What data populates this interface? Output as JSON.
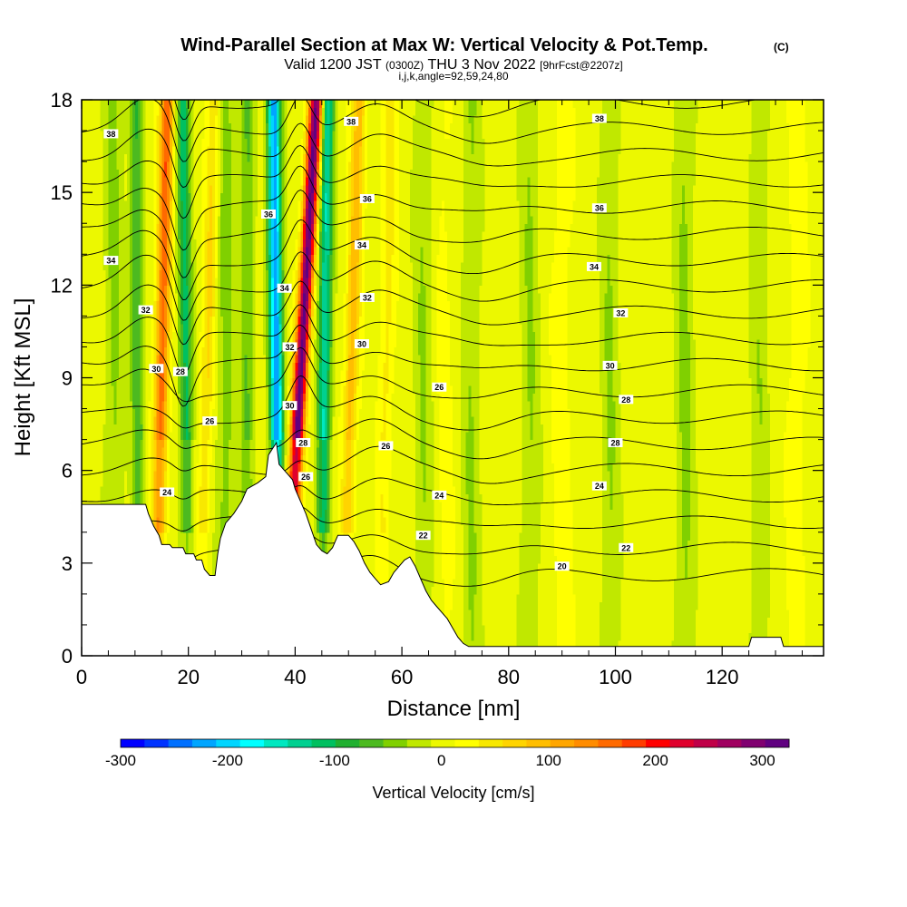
{
  "chart_data": {
    "type": "heatmap",
    "title": "Wind-Parallel Section at Max W: Vertical Velocity & Pot.Temp.",
    "title_mark": "(C)",
    "subtitle_parts": [
      "Valid 1200 JST",
      "(0300Z)",
      "THU 3 Nov 2022",
      "[9hrFcst@2207z]"
    ],
    "subtitle2": "i,j,k,angle=92,59,24,80",
    "xlabel": "Distance [nm]",
    "ylabel": "Height [Kft MSL]",
    "xlim": [
      0,
      139
    ],
    "ylim": [
      0,
      18
    ],
    "x_ticks": [
      "0",
      "20",
      "40",
      "60",
      "80",
      "100",
      "120"
    ],
    "y_ticks": [
      "0",
      "3",
      "6",
      "9",
      "12",
      "15",
      "18"
    ],
    "colorbar": {
      "title": "Vertical Velocity [cm/s]",
      "range": [
        -300,
        325
      ],
      "tick_labels": [
        "-300",
        "-200",
        "-100",
        "0",
        "100",
        "200",
        "300"
      ],
      "colors": [
        "#0000ff",
        "#0033ff",
        "#0070ff",
        "#00a5ff",
        "#00d5ff",
        "#00ffff",
        "#00e8c0",
        "#00d090",
        "#00c060",
        "#20b030",
        "#4cba20",
        "#80d000",
        "#c0e800",
        "#ecf800",
        "#ffff00",
        "#f8e800",
        "#ffd400",
        "#ffbe00",
        "#ffa600",
        "#ff8c00",
        "#ff6a00",
        "#ff3c00",
        "#ff0000",
        "#e0002c",
        "#c00048",
        "#a00060",
        "#800070",
        "#600080"
      ]
    },
    "updraft_bands": [
      {
        "x_bottom": 14,
        "x_top": 16,
        "w": 160
      },
      {
        "x_bottom": 38,
        "x_top": 44,
        "w": 310
      },
      {
        "x_bottom": 49,
        "x_top": 52,
        "w": 90
      },
      {
        "x_bottom": 22,
        "x_top": 25,
        "w": 60
      },
      {
        "x_bottom": 56,
        "x_top": 58,
        "w": 40
      }
    ],
    "downdraft_bands": [
      {
        "x_bottom": 11,
        "x_top": 10,
        "w": -80
      },
      {
        "x_bottom": 20,
        "x_top": 19,
        "w": -110
      },
      {
        "x_bottom": 37,
        "x_top": 36,
        "w": -230
      },
      {
        "x_bottom": 45,
        "x_top": 46,
        "w": -150
      },
      {
        "x_bottom": 31,
        "x_top": 31,
        "w": -60
      }
    ],
    "weak_bands": [
      {
        "x": 6,
        "w": -40
      },
      {
        "x": 27,
        "w": -45
      },
      {
        "x": 64,
        "w": -35
      },
      {
        "x": 73,
        "w": -35
      },
      {
        "x": 84,
        "w": -35
      },
      {
        "x": 99,
        "w": -35
      },
      {
        "x": 113,
        "w": -40
      },
      {
        "x": 127,
        "w": -30
      },
      {
        "x": 134,
        "w": 20
      },
      {
        "x": 68,
        "w": 15
      },
      {
        "x": 90,
        "w": 20
      }
    ],
    "terrain": [
      [
        0,
        4.9
      ],
      [
        12,
        4.9
      ],
      [
        12.5,
        4.6
      ],
      [
        13.5,
        4.2
      ],
      [
        14.5,
        3.9
      ],
      [
        15,
        3.6
      ],
      [
        16.5,
        3.6
      ],
      [
        17,
        3.5
      ],
      [
        19,
        3.5
      ],
      [
        19.5,
        3.3
      ],
      [
        21,
        3.3
      ],
      [
        21.5,
        3.1
      ],
      [
        22.5,
        3.1
      ],
      [
        23,
        2.8
      ],
      [
        24,
        2.6
      ],
      [
        25,
        2.6
      ],
      [
        25.5,
        3.3
      ],
      [
        26,
        3.8
      ],
      [
        27,
        4.3
      ],
      [
        28.5,
        4.6
      ],
      [
        30,
        5
      ],
      [
        31,
        5.4
      ],
      [
        33,
        5.6
      ],
      [
        34.5,
        5.8
      ],
      [
        35,
        6.5
      ],
      [
        36.5,
        6.9
      ],
      [
        37,
        6.2
      ],
      [
        38,
        6.0
      ],
      [
        38.5,
        5.9
      ],
      [
        39.5,
        5.7
      ],
      [
        40,
        5.4
      ],
      [
        41,
        5.0
      ],
      [
        42,
        4.6
      ],
      [
        43,
        4.1
      ],
      [
        44,
        3.6
      ],
      [
        45,
        3.4
      ],
      [
        46,
        3.3
      ],
      [
        47,
        3.5
      ],
      [
        48,
        3.9
      ],
      [
        50,
        3.9
      ],
      [
        51,
        3.7
      ],
      [
        52,
        3.4
      ],
      [
        53,
        3.0
      ],
      [
        54,
        2.7
      ],
      [
        55,
        2.5
      ],
      [
        56,
        2.3
      ],
      [
        57.5,
        2.4
      ],
      [
        58.5,
        2.7
      ],
      [
        59.5,
        2.9
      ],
      [
        60.5,
        3.1
      ],
      [
        61.5,
        3.2
      ],
      [
        62.5,
        2.9
      ],
      [
        63.5,
        2.5
      ],
      [
        64.5,
        2.1
      ],
      [
        65.5,
        1.8
      ],
      [
        66.5,
        1.6
      ],
      [
        67.5,
        1.4
      ],
      [
        68.5,
        1.2
      ],
      [
        69.5,
        0.9
      ],
      [
        70.5,
        0.6
      ],
      [
        71.5,
        0.4
      ],
      [
        72.5,
        0.3
      ],
      [
        125,
        0.3
      ],
      [
        125.5,
        0.6
      ],
      [
        131,
        0.6
      ],
      [
        131.5,
        0.3
      ],
      [
        139,
        0.3
      ]
    ],
    "contour_levels": [
      20,
      22,
      24,
      26,
      28,
      30,
      32,
      34,
      36,
      38
    ],
    "contour_labels": [
      {
        "text": "38",
        "x": 5.5,
        "y": 16.9
      },
      {
        "text": "36",
        "x": 35,
        "y": 14.3
      },
      {
        "text": "34",
        "x": 5.5,
        "y": 12.8
      },
      {
        "text": "32",
        "x": 12,
        "y": 11.2
      },
      {
        "text": "30",
        "x": 14,
        "y": 9.3
      },
      {
        "text": "28",
        "x": 18.5,
        "y": 9.2
      },
      {
        "text": "26",
        "x": 24,
        "y": 7.6
      },
      {
        "text": "24",
        "x": 16,
        "y": 5.3
      },
      {
        "text": "34",
        "x": 38,
        "y": 11.9
      },
      {
        "text": "32",
        "x": 39,
        "y": 10.0
      },
      {
        "text": "30",
        "x": 39,
        "y": 8.1
      },
      {
        "text": "28",
        "x": 41.5,
        "y": 6.9
      },
      {
        "text": "26",
        "x": 42,
        "y": 5.8
      },
      {
        "text": "38",
        "x": 50.5,
        "y": 17.3
      },
      {
        "text": "36",
        "x": 53.5,
        "y": 14.8
      },
      {
        "text": "34",
        "x": 52.5,
        "y": 13.3
      },
      {
        "text": "32",
        "x": 53.5,
        "y": 11.6
      },
      {
        "text": "30",
        "x": 52.5,
        "y": 10.1
      },
      {
        "text": "26",
        "x": 57,
        "y": 6.8
      },
      {
        "text": "22",
        "x": 64,
        "y": 3.9
      },
      {
        "text": "26",
        "x": 67,
        "y": 8.7
      },
      {
        "text": "24",
        "x": 67,
        "y": 5.2
      },
      {
        "text": "38",
        "x": 97,
        "y": 17.4
      },
      {
        "text": "36",
        "x": 97,
        "y": 14.5
      },
      {
        "text": "34",
        "x": 96,
        "y": 12.6
      },
      {
        "text": "32",
        "x": 101,
        "y": 11.1
      },
      {
        "text": "30",
        "x": 99,
        "y": 9.4
      },
      {
        "text": "28",
        "x": 102,
        "y": 8.3
      },
      {
        "text": "28",
        "x": 100,
        "y": 6.9
      },
      {
        "text": "24",
        "x": 97,
        "y": 5.5
      },
      {
        "text": "22",
        "x": 102,
        "y": 3.5
      },
      {
        "text": "20",
        "x": 90,
        "y": 2.9
      }
    ]
  }
}
